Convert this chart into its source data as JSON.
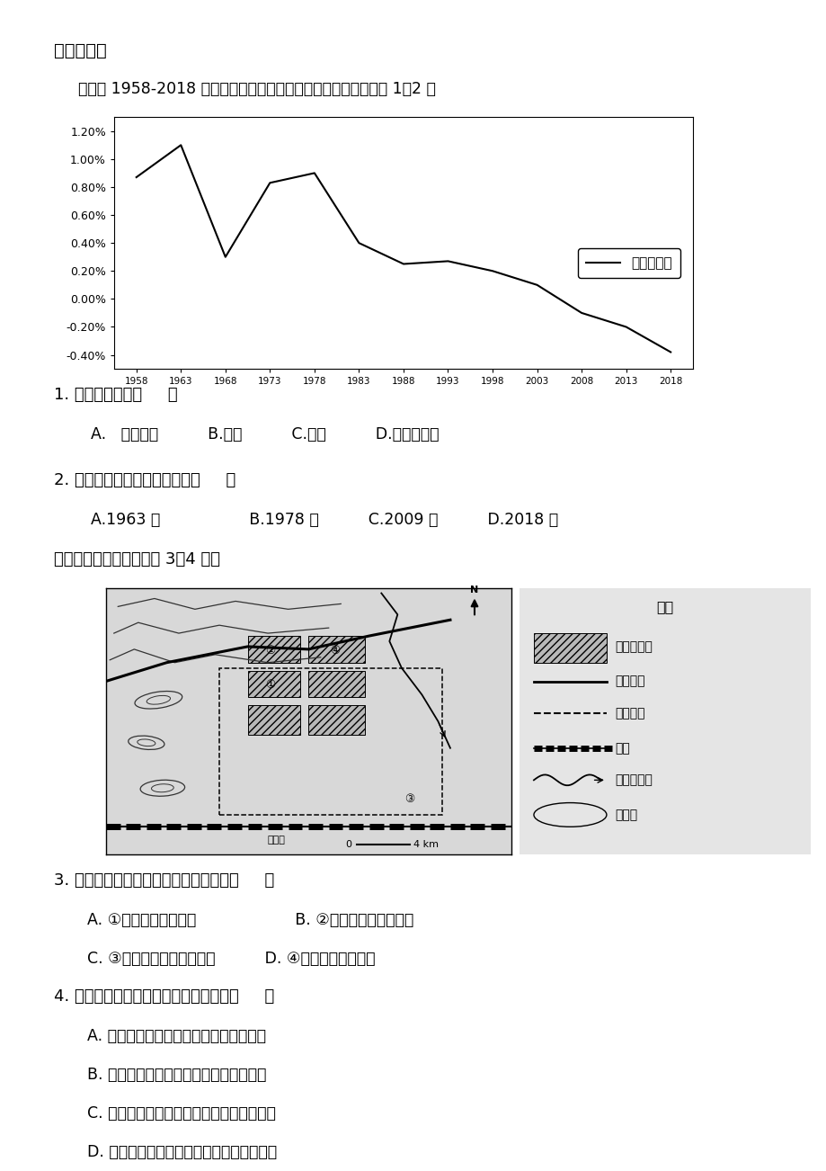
{
  "title_section": "一、选择题",
  "chart_intro": "下图为 1958-2018 年亚洲某国人口增长率变化示意图，据图完成 1～2 题",
  "chart_years": [
    1958,
    1963,
    1968,
    1973,
    1978,
    1983,
    1988,
    1993,
    1998,
    2003,
    2008,
    2013,
    2018
  ],
  "chart_values": [
    0.0087,
    0.011,
    0.003,
    0.0083,
    0.009,
    0.004,
    0.0025,
    0.0027,
    0.002,
    0.001,
    -0.001,
    -0.002,
    -0.0038
  ],
  "chart_ylabel_ticks": [
    "1.20%",
    "1.00%",
    "0.80%",
    "0.60%",
    "0.40%",
    "0.20%",
    "0.00%",
    "-0.20%",
    "-0.40%"
  ],
  "chart_yticks": [
    0.012,
    0.01,
    0.008,
    0.006,
    0.004,
    0.002,
    0.0,
    -0.002,
    -0.004
  ],
  "chart_legend": "人口增长率",
  "q1_text": "1. 该国最可能是（     ）",
  "q1_opt": "A.   孟加拉国          B.日本          C.德国          D.沙特阿拉伯",
  "q2_text": "2. 该国人口最多的年份可能是（     ）",
  "q2_opt": "A.1963 年                  B.1978 年          C.2009 年          D.2018 年",
  "map_intro": "读某城区分布略图，完成 3～4 题。",
  "q3_text": "3. 该城市布局中，各种布局最合理的是（     ）",
  "q3_opt_a": "A. ①处布局高级住宅区                    B. ②处为大型港口仓储区",
  "q3_opt_c": "C. ③处为城市外迁的水泥厂          D. ④处布局沿江商业区",
  "q4_text": "4. 关于城市国道改道的说法，正确的是（     ）",
  "q4_opt_a": "A. 更加方便市民出行，提供多种出行方式",
  "q4_opt_b": "B. 引导城市建成区在空间上往北、东发展",
  "q4_opt_c": "C. 使过境车辆绕过城市，缓解城区交通拥堵",
  "q4_opt_d": "D. 使进入城市车流减少，限制城市经济发展",
  "legend_title": "图例",
  "legend_items": [
    "城市建成区",
    "原国道线",
    "新国道线",
    "铁路",
    "河流及流向",
    "等高线"
  ]
}
